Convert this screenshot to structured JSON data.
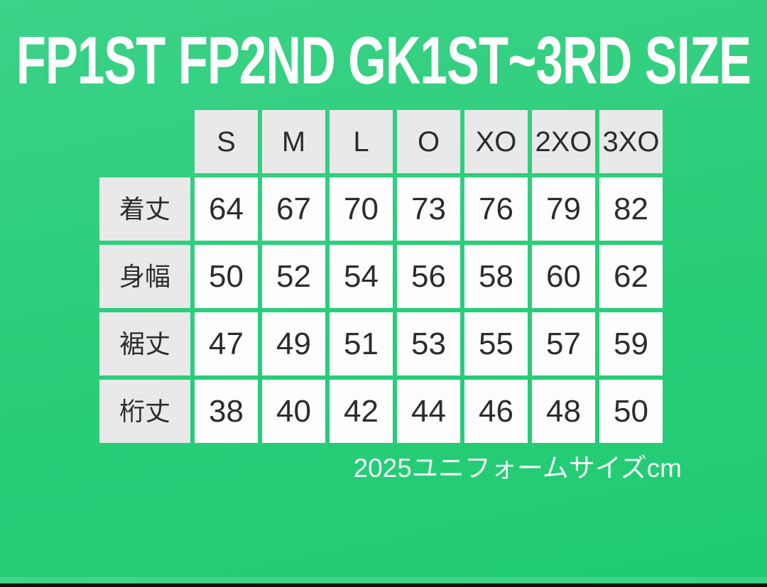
{
  "chart_data": {
    "type": "table",
    "title": "FP1ST FP2ND GK1ST~3RD SIZE",
    "column_headers": [
      "S",
      "M",
      "L",
      "O",
      "XO",
      "2XO",
      "3XO"
    ],
    "rows": [
      {
        "label": "着丈",
        "values": [
          64,
          67,
          70,
          73,
          76,
          79,
          82
        ]
      },
      {
        "label": "身幅",
        "values": [
          50,
          52,
          54,
          56,
          58,
          60,
          62
        ]
      },
      {
        "label": "裾丈",
        "values": [
          47,
          49,
          51,
          53,
          55,
          57,
          59
        ]
      },
      {
        "label": "桁丈",
        "values": [
          38,
          40,
          42,
          44,
          46,
          48,
          50
        ]
      }
    ],
    "caption": "2025ユニフォームサイズcm",
    "layout": {
      "header_cells_background": "light-gray",
      "data_cells_background": "white",
      "grid_gap_shows_background": true
    }
  },
  "colors": {
    "background_green": "#2bce7a",
    "background_green_light": "#3cd287",
    "background_green_dark": "#1fca72",
    "cell_header_gray": "#e9e9e9",
    "cell_white": "#fdfdfd",
    "text_dark": "#2c2c2c",
    "title_white": "#ffffff",
    "caption_white": "#f2fdf7",
    "bottom_bar_black": "#121212"
  }
}
